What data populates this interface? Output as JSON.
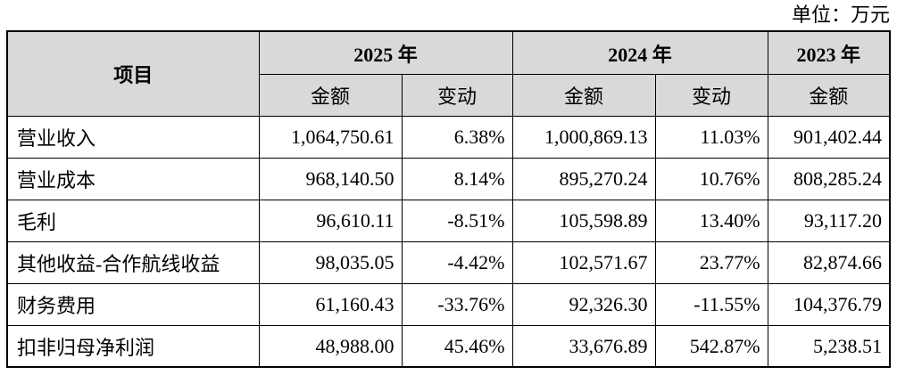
{
  "unit_label": "单位：万元",
  "header": {
    "item": "项目",
    "years": [
      "2025 年",
      "2024 年",
      "2023 年"
    ],
    "amount": "金额",
    "change": "变动"
  },
  "rows": [
    {
      "label": "营业收入",
      "v2025": "1,064,750.61",
      "c2025": "6.38%",
      "v2024": "1,000,869.13",
      "c2024": "11.03%",
      "v2023": "901,402.44"
    },
    {
      "label": "营业成本",
      "v2025": "968,140.50",
      "c2025": "8.14%",
      "v2024": "895,270.24",
      "c2024": "10.76%",
      "v2023": "808,285.24"
    },
    {
      "label": "毛利",
      "v2025": "96,610.11",
      "c2025": "-8.51%",
      "v2024": "105,598.89",
      "c2024": "13.40%",
      "v2023": "93,117.20"
    },
    {
      "label": "其他收益-合作航线收益",
      "v2025": "98,035.05",
      "c2025": "-4.42%",
      "v2024": "102,571.67",
      "c2024": "23.77%",
      "v2023": "82,874.66"
    },
    {
      "label": "财务费用",
      "v2025": "61,160.43",
      "c2025": "-33.76%",
      "v2024": "92,326.30",
      "c2024": "-11.55%",
      "v2023": "104,376.79"
    },
    {
      "label": "扣非归母净利润",
      "v2025": "48,988.00",
      "c2025": "45.46%",
      "v2024": "33,676.89",
      "c2024": "542.87%",
      "v2023": "5,238.51"
    }
  ]
}
